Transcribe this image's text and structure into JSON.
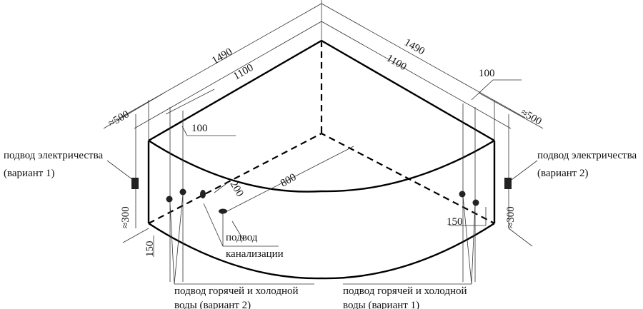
{
  "dimensions": {
    "left_overall": "1490",
    "left_inner": "1100",
    "right_overall": "1490",
    "right_inner": "1100",
    "left_offset": "≈500",
    "right_offset": "≈500",
    "left_pipe_spacing": "100",
    "right_pipe_spacing": "100",
    "drain_distance": "800",
    "drain_offset": "200",
    "left_height": "≈300",
    "right_height": "≈300",
    "left_pipe_height": "150",
    "right_pipe_height": "150"
  },
  "labels": {
    "electric_left_line1": "подвод электричества",
    "electric_left_line2": "(вариант 1)",
    "electric_right_line1": "подвод электричества",
    "electric_right_line2": "(вариант 2)",
    "drain_line1": "подвод",
    "drain_line2": "канализации",
    "water_left_line1": "подвод горячей и холодной",
    "water_left_line2": "воды (вариант 2)",
    "water_right_line1": "подвод горячей и холодной",
    "water_right_line2": "воды (вариант 1)"
  }
}
